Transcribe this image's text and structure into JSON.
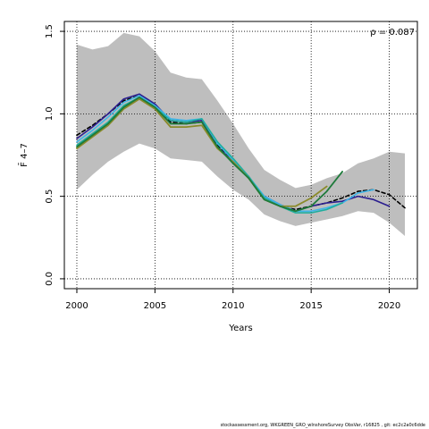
{
  "chart_data": {
    "type": "line",
    "title": "",
    "xlabel": "Years",
    "ylabel": "F̄ 4–7",
    "xlim": [
      1999.2,
      2021.8
    ],
    "ylim": [
      -0.06,
      1.56
    ],
    "x_ticks": [
      2000,
      2005,
      2010,
      2015,
      2020
    ],
    "y_ticks": [
      0.0,
      0.5,
      1.0,
      1.5
    ],
    "x_tick_labels": [
      "2000",
      "2005",
      "2010",
      "2015",
      "2020"
    ],
    "y_tick_labels": [
      "0.0",
      "0.5",
      "1.0",
      "1.5"
    ],
    "grid": true,
    "grid_style": "dotted",
    "annotation": "ρ = 0.087",
    "confidence_band": {
      "x": [
        2000,
        2001,
        2002,
        2003,
        2004,
        2005,
        2006,
        2007,
        2008,
        2009,
        2010,
        2011,
        2012,
        2013,
        2014,
        2015,
        2016,
        2017,
        2018,
        2019,
        2020,
        2021
      ],
      "lower": [
        0.54,
        0.63,
        0.71,
        0.77,
        0.82,
        0.79,
        0.73,
        0.72,
        0.71,
        0.62,
        0.54,
        0.48,
        0.39,
        0.35,
        0.32,
        0.34,
        0.36,
        0.38,
        0.41,
        0.4,
        0.34,
        0.26
      ],
      "upper": [
        1.42,
        1.39,
        1.41,
        1.49,
        1.47,
        1.38,
        1.25,
        1.22,
        1.21,
        1.08,
        0.94,
        0.79,
        0.66,
        0.6,
        0.55,
        0.57,
        0.61,
        0.64,
        0.7,
        0.73,
        0.77,
        0.76
      ],
      "color": "#bebebe"
    },
    "series": [
      {
        "x": [
          2000,
          2001,
          2002,
          2003,
          2004,
          2005,
          2006,
          2007,
          2008,
          2009,
          2010,
          2011,
          2012,
          2013,
          2014,
          2015,
          2016,
          2017,
          2018,
          2019,
          2020,
          2021
        ],
        "values": [
          0.87,
          0.93,
          1.0,
          1.08,
          1.11,
          1.05,
          0.95,
          0.94,
          0.95,
          0.81,
          0.72,
          0.62,
          0.49,
          0.44,
          0.42,
          0.44,
          0.46,
          0.49,
          0.53,
          0.54,
          0.51,
          0.43
        ],
        "color": "#000000",
        "dash": "4,3",
        "width": 1.6
      },
      {
        "x": [
          2000,
          2001,
          2002,
          2003,
          2004,
          2005,
          2006,
          2007,
          2008,
          2009,
          2010,
          2011,
          2012,
          2013,
          2014,
          2015,
          2016,
          2017,
          2018,
          2019,
          2020
        ],
        "values": [
          0.85,
          0.92,
          1.0,
          1.09,
          1.12,
          1.06,
          0.96,
          0.95,
          0.96,
          0.8,
          0.71,
          0.61,
          0.5,
          0.45,
          0.41,
          0.44,
          0.46,
          0.47,
          0.5,
          0.48,
          0.44
        ],
        "color": "#2b1e8f",
        "dash": "",
        "width": 1.6
      },
      {
        "x": [
          2000,
          2001,
          2002,
          2003,
          2004,
          2005,
          2006,
          2007,
          2008,
          2009,
          2010,
          2011,
          2012,
          2013,
          2014,
          2015,
          2016,
          2017,
          2018,
          2019
        ],
        "values": [
          0.83,
          0.9,
          0.98,
          1.07,
          1.11,
          1.05,
          0.97,
          0.96,
          0.97,
          0.82,
          0.72,
          0.62,
          0.5,
          0.45,
          0.41,
          0.41,
          0.43,
          0.46,
          0.52,
          0.54
        ],
        "color": "#3fb5e8",
        "dash": "",
        "width": 1.6
      },
      {
        "x": [
          2000,
          2001,
          2002,
          2003,
          2004,
          2005,
          2006,
          2007,
          2008,
          2009,
          2010,
          2011,
          2012,
          2013,
          2014,
          2015,
          2016,
          2017
        ],
        "values": [
          0.81,
          0.88,
          0.95,
          1.05,
          1.1,
          1.04,
          0.96,
          0.95,
          0.97,
          0.83,
          0.73,
          0.62,
          0.49,
          0.44,
          0.4,
          0.4,
          0.42,
          0.46
        ],
        "color": "#1fae9e",
        "dash": "",
        "width": 1.6
      },
      {
        "x": [
          2000,
          2001,
          2002,
          2003,
          2004,
          2005,
          2006,
          2007,
          2008,
          2009,
          2010,
          2011,
          2012,
          2013,
          2014,
          2015,
          2016
        ],
        "values": [
          0.79,
          0.86,
          0.93,
          1.03,
          1.09,
          1.03,
          0.92,
          0.92,
          0.93,
          0.79,
          0.71,
          0.61,
          0.48,
          0.44,
          0.44,
          0.49,
          0.56
        ],
        "color": "#8a8a2a",
        "dash": "",
        "width": 1.8
      },
      {
        "x": [
          2000,
          2001,
          2002,
          2003,
          2004,
          2005,
          2006,
          2007,
          2008,
          2009,
          2010,
          2011,
          2012,
          2013,
          2014,
          2015,
          2016,
          2017
        ],
        "values": [
          0.8,
          0.87,
          0.94,
          1.04,
          1.1,
          1.04,
          0.94,
          0.94,
          0.95,
          0.8,
          0.7,
          0.61,
          0.48,
          0.44,
          0.41,
          0.44,
          0.53,
          0.65
        ],
        "color": "#1e7a3a",
        "dash": "",
        "width": 1.8
      }
    ]
  },
  "footer": "stockassessment.org, WKGREEN_GRO_wInshoreSurvey ObsVar, r16825 , git: ec2c2a0c6dde"
}
